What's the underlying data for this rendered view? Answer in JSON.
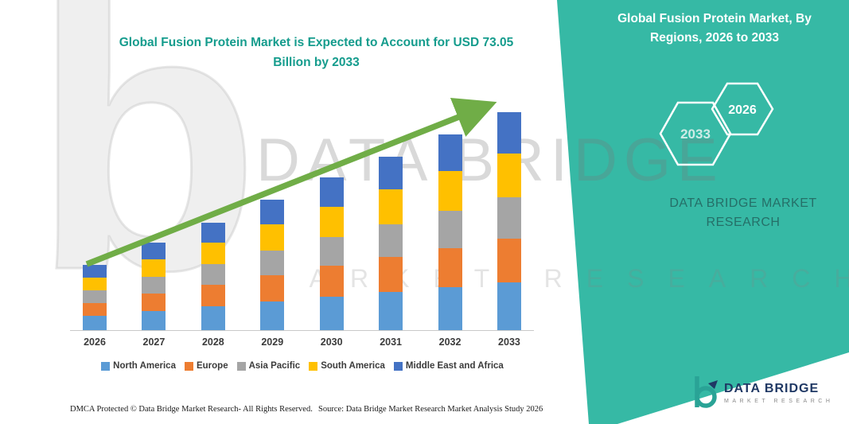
{
  "colors": {
    "panel_teal": "#36B9A5",
    "title_teal": "#159C8D",
    "arrow_green": "#70AD47",
    "logo_navy": "#1F3864",
    "logo_teal": "#2AA396"
  },
  "header": {
    "chart_title": "Global Fusion Protein Market is Expected to Account for USD 73.05 Billion by 2033",
    "panel_title": "Global Fusion Protein Market, By Regions, 2026 to 2033"
  },
  "hexagons": {
    "left_year": "2033",
    "right_year": "2026"
  },
  "panel": {
    "brand_text": "DATA BRIDGE MARKET RESEARCH"
  },
  "watermark": {
    "b": "b",
    "line1": "DATA BRIDGE",
    "line2": "MARKET RESEARCH"
  },
  "footer": {
    "dmca": "DMCA Protected © Data Bridge Market Research-  All Rights Reserved.",
    "source": "Source: Data Bridge Market Research  Market Analysis Study 2026"
  },
  "logo": {
    "name": "DATA BRIDGE",
    "sub": "MARKET RESEARCH"
  },
  "chart_data": {
    "type": "bar",
    "stacked": true,
    "title": "Global Fusion Protein Market is Expected to Account for USD 73.05 Billion by 2033",
    "unit": "USD Billion",
    "categories": [
      "2026",
      "2027",
      "2028",
      "2029",
      "2030",
      "2031",
      "2032",
      "2033"
    ],
    "series": [
      {
        "name": "North America",
        "color": "#5B9BD5",
        "values": [
          4.82,
          6.45,
          7.94,
          9.64,
          11.26,
          12.83,
          14.45,
          16.07
        ]
      },
      {
        "name": "Europe",
        "color": "#ED7D31",
        "values": [
          4.38,
          5.86,
          7.22,
          8.76,
          10.24,
          11.66,
          13.14,
          14.61
        ]
      },
      {
        "name": "Asia Pacific",
        "color": "#A5A5A5",
        "values": [
          4.16,
          5.57,
          6.86,
          8.32,
          9.73,
          11.08,
          12.48,
          13.88
        ]
      },
      {
        "name": "South America",
        "color": "#FFC000",
        "values": [
          4.38,
          5.86,
          7.22,
          8.76,
          10.24,
          11.66,
          13.14,
          14.61
        ]
      },
      {
        "name": "Middle East and Africa",
        "color": "#4472C4",
        "values": [
          4.16,
          5.57,
          6.86,
          8.32,
          9.73,
          11.08,
          12.48,
          13.88
        ]
      }
    ],
    "totals": [
      21.9,
      29.31,
      36.1,
      43.8,
      51.2,
      58.31,
      65.69,
      73.05
    ],
    "ylim": [
      0,
      80
    ],
    "grid": false,
    "legend_position": "bottom",
    "trend_arrow": true,
    "highlight_value": "USD 73.05 Billion",
    "highlight_year": "2033"
  }
}
